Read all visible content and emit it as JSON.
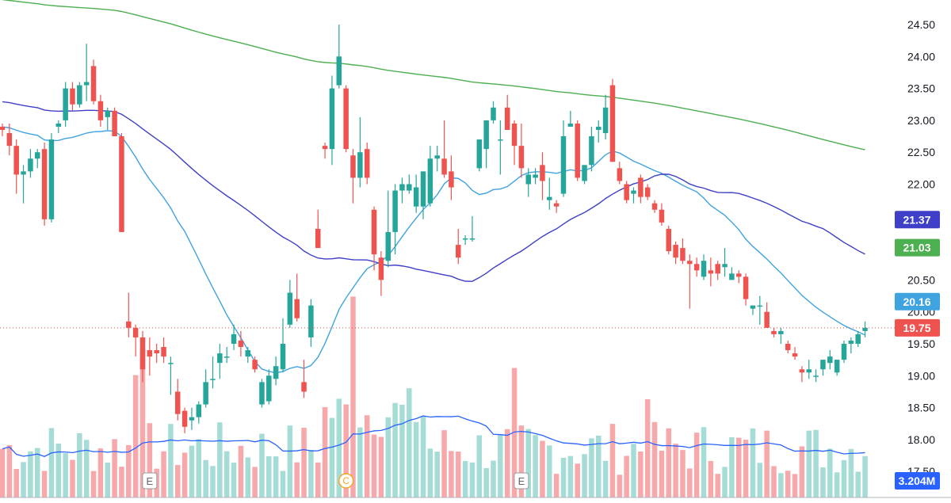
{
  "colors": {
    "up": "#26a69a",
    "down": "#ef5350",
    "up_volume": "#a6dcd6",
    "down_volume": "#f7a8ab",
    "ma20": "#3fa3e0",
    "ma50": "#3f3fc8",
    "ma200": "#4caf50",
    "volume_ma": "#2962ff",
    "price_line": "#ef5350",
    "grid_axis_text": "#131722"
  },
  "chart_data": {
    "type": "candlestick",
    "ylim": [
      17.3,
      24.75
    ],
    "yticks": [
      "24.50",
      "24.00",
      "23.50",
      "23.00",
      "22.50",
      "22.00",
      "21.50",
      "21.00",
      "20.50",
      "20.00",
      "19.50",
      "19.00",
      "18.50",
      "18.00",
      "17.50"
    ],
    "last_price": 19.75,
    "ohlc": [
      [
        22.9,
        22.95,
        22.75,
        22.85
      ],
      [
        22.8,
        22.95,
        22.45,
        22.6
      ],
      [
        22.6,
        22.7,
        21.85,
        22.15
      ],
      [
        22.15,
        22.3,
        21.7,
        22.2
      ],
      [
        22.2,
        22.55,
        22.1,
        22.4
      ],
      [
        22.4,
        22.55,
        22.25,
        22.5
      ],
      [
        22.55,
        22.65,
        21.35,
        21.45
      ],
      [
        21.45,
        22.8,
        21.4,
        22.7
      ],
      [
        22.9,
        23.0,
        22.8,
        22.95
      ],
      [
        23.0,
        23.6,
        22.9,
        23.5
      ],
      [
        23.5,
        23.6,
        23.15,
        23.25
      ],
      [
        23.25,
        23.6,
        23.2,
        23.55
      ],
      [
        23.55,
        24.2,
        23.3,
        23.6
      ],
      [
        23.85,
        23.95,
        23.25,
        23.3
      ],
      [
        23.3,
        23.4,
        22.9,
        23.0
      ],
      [
        23.05,
        23.2,
        22.85,
        23.15
      ],
      [
        23.15,
        23.2,
        22.75,
        22.75
      ],
      [
        22.75,
        22.8,
        21.25,
        21.25
      ],
      [
        19.85,
        20.3,
        19.6,
        19.75
      ],
      [
        19.75,
        19.8,
        19.3,
        19.6
      ],
      [
        19.6,
        19.7,
        18.9,
        19.1
      ],
      [
        19.4,
        19.6,
        19.0,
        19.3
      ],
      [
        19.4,
        19.5,
        19.2,
        19.35
      ],
      [
        19.45,
        19.6,
        19.2,
        19.3
      ],
      [
        19.2,
        19.3,
        18.7,
        19.2
      ],
      [
        18.75,
        18.95,
        18.3,
        18.4
      ],
      [
        18.45,
        18.5,
        18.1,
        18.2
      ],
      [
        18.3,
        18.5,
        18.15,
        18.35
      ],
      [
        18.35,
        18.6,
        18.25,
        18.55
      ],
      [
        18.55,
        19.1,
        18.5,
        18.9
      ],
      [
        18.95,
        19.3,
        18.8,
        18.95
      ],
      [
        19.2,
        19.5,
        18.95,
        19.35
      ],
      [
        19.3,
        19.45,
        19.2,
        19.3
      ],
      [
        19.5,
        19.8,
        19.4,
        19.65
      ],
      [
        19.55,
        19.7,
        19.3,
        19.45
      ],
      [
        19.3,
        19.45,
        19.2,
        19.4
      ],
      [
        19.25,
        19.3,
        19.05,
        19.1
      ],
      [
        18.55,
        18.95,
        18.5,
        18.9
      ],
      [
        18.6,
        19.1,
        18.55,
        19.0
      ],
      [
        18.95,
        19.3,
        18.85,
        19.15
      ],
      [
        19.1,
        19.9,
        19.05,
        19.5
      ],
      [
        19.8,
        20.5,
        19.75,
        20.3
      ],
      [
        20.2,
        20.6,
        19.85,
        19.9
      ],
      [
        18.9,
        19.25,
        18.65,
        18.75
      ],
      [
        19.6,
        20.2,
        19.45,
        20.1
      ],
      [
        21.3,
        21.6,
        21.0,
        21.0
      ],
      [
        22.6,
        22.65,
        22.4,
        22.55
      ],
      [
        22.55,
        23.7,
        22.3,
        23.5
      ],
      [
        23.55,
        24.5,
        23.5,
        24.0
      ],
      [
        23.5,
        23.55,
        22.5,
        22.55
      ],
      [
        22.45,
        22.55,
        21.7,
        22.1
      ],
      [
        22.1,
        23.05,
        21.95,
        22.5
      ],
      [
        22.55,
        22.65,
        22.0,
        22.1
      ],
      [
        21.6,
        21.65,
        20.65,
        20.9
      ],
      [
        20.85,
        20.95,
        20.25,
        20.5
      ],
      [
        20.8,
        21.9,
        20.7,
        21.25
      ],
      [
        21.25,
        22.0,
        20.9,
        21.9
      ],
      [
        21.9,
        22.1,
        21.7,
        22.0
      ],
      [
        21.9,
        22.15,
        21.85,
        22.0
      ],
      [
        21.65,
        22.15,
        21.55,
        21.95
      ],
      [
        21.65,
        22.2,
        21.45,
        22.2
      ],
      [
        21.7,
        22.6,
        21.65,
        22.4
      ],
      [
        22.4,
        22.6,
        22.2,
        22.45
      ],
      [
        22.4,
        23.0,
        22.1,
        22.15
      ],
      [
        22.2,
        22.45,
        21.75,
        21.95
      ],
      [
        21.05,
        21.3,
        20.75,
        20.85
      ],
      [
        21.15,
        21.2,
        21.05,
        21.15
      ],
      [
        21.15,
        21.5,
        21.1,
        21.15
      ],
      [
        22.25,
        22.7,
        22.2,
        22.7
      ],
      [
        22.55,
        23.0,
        22.25,
        23.0
      ],
      [
        23.0,
        23.3,
        22.95,
        23.2
      ],
      [
        22.7,
        23.0,
        22.15,
        22.7
      ],
      [
        23.2,
        23.4,
        22.85,
        22.85
      ],
      [
        22.95,
        23.0,
        22.3,
        22.6
      ],
      [
        22.6,
        22.95,
        22.1,
        22.25
      ],
      [
        22.0,
        22.25,
        21.8,
        22.15
      ],
      [
        22.1,
        22.25,
        22.0,
        22.15
      ],
      [
        22.3,
        22.5,
        21.75,
        22.05
      ],
      [
        21.75,
        22.1,
        21.6,
        21.8
      ],
      [
        21.7,
        21.75,
        21.55,
        21.65
      ],
      [
        21.85,
        23.0,
        21.8,
        22.75
      ],
      [
        22.9,
        23.15,
        22.9,
        22.95
      ],
      [
        22.95,
        23.0,
        22.05,
        22.1
      ],
      [
        22.05,
        22.3,
        22.0,
        22.3
      ],
      [
        22.3,
        22.9,
        22.2,
        22.75
      ],
      [
        22.85,
        23.0,
        22.65,
        22.9
      ],
      [
        22.8,
        23.4,
        22.7,
        23.2
      ],
      [
        23.55,
        23.65,
        22.35,
        22.35
      ],
      [
        22.25,
        22.35,
        22.0,
        22.05
      ],
      [
        22.0,
        22.05,
        21.7,
        21.75
      ],
      [
        21.85,
        21.95,
        21.7,
        21.9
      ],
      [
        22.1,
        22.15,
        21.7,
        21.8
      ],
      [
        21.95,
        22.0,
        21.75,
        21.8
      ],
      [
        21.7,
        21.75,
        21.55,
        21.6
      ],
      [
        21.6,
        21.7,
        21.35,
        21.4
      ],
      [
        21.3,
        21.35,
        20.9,
        20.95
      ],
      [
        21.05,
        21.1,
        20.75,
        20.85
      ],
      [
        21.0,
        21.15,
        20.75,
        20.8
      ],
      [
        20.8,
        20.9,
        20.05,
        20.75
      ],
      [
        20.75,
        20.85,
        20.55,
        20.65
      ],
      [
        20.55,
        20.9,
        20.5,
        20.8
      ],
      [
        20.65,
        20.85,
        20.4,
        20.6
      ],
      [
        20.75,
        20.8,
        20.5,
        20.6
      ],
      [
        20.7,
        21.0,
        20.55,
        20.75
      ],
      [
        20.5,
        20.7,
        20.5,
        20.6
      ],
      [
        20.6,
        20.65,
        20.45,
        20.55
      ],
      [
        20.55,
        20.6,
        20.1,
        20.2
      ],
      [
        20.05,
        20.1,
        19.95,
        20.1
      ],
      [
        20.1,
        20.25,
        19.8,
        20.1
      ],
      [
        20.0,
        20.15,
        19.75,
        19.75
      ],
      [
        19.7,
        19.75,
        19.6,
        19.65
      ],
      [
        19.65,
        19.75,
        19.5,
        19.7
      ],
      [
        19.5,
        19.55,
        19.35,
        19.4
      ],
      [
        19.35,
        19.45,
        19.25,
        19.3
      ],
      [
        19.1,
        19.15,
        18.9,
        19.05
      ],
      [
        19.05,
        19.25,
        18.95,
        19.1
      ],
      [
        19.0,
        19.1,
        18.9,
        19.0
      ],
      [
        19.1,
        19.25,
        19.0,
        19.25
      ],
      [
        19.2,
        19.4,
        19.1,
        19.3
      ],
      [
        19.05,
        19.25,
        19.0,
        19.25
      ],
      [
        19.25,
        19.55,
        19.2,
        19.5
      ],
      [
        19.5,
        19.6,
        19.35,
        19.55
      ],
      [
        19.5,
        19.7,
        19.45,
        19.65
      ],
      [
        19.7,
        19.85,
        19.6,
        19.75
      ]
    ],
    "volume_max": 4.4,
    "volume_ticks": [],
    "overlays": [
      {
        "name": "MA 20",
        "color_key": "ma20",
        "last_value": 20.16
      },
      {
        "name": "MA 50",
        "color_key": "ma50",
        "last_value": 21.37
      },
      {
        "name": "MA 200",
        "color_key": "ma200",
        "last_value": 21.03
      }
    ],
    "volume_ma_last": "3.204M",
    "markers": [
      {
        "label": "E",
        "bar": 21
      },
      {
        "label": "C",
        "bar": 49
      },
      {
        "label": "E",
        "bar": 74
      }
    ]
  },
  "right_badges": [
    {
      "text": "21.37",
      "color_key": "ma50"
    },
    {
      "text": "21.03",
      "color_key": "ma200"
    },
    {
      "text": "20.16",
      "color_key": "ma20"
    },
    {
      "text": "19.75",
      "color_key": "price_line"
    },
    {
      "text": "3.204M",
      "color_key": "volume_ma"
    }
  ]
}
